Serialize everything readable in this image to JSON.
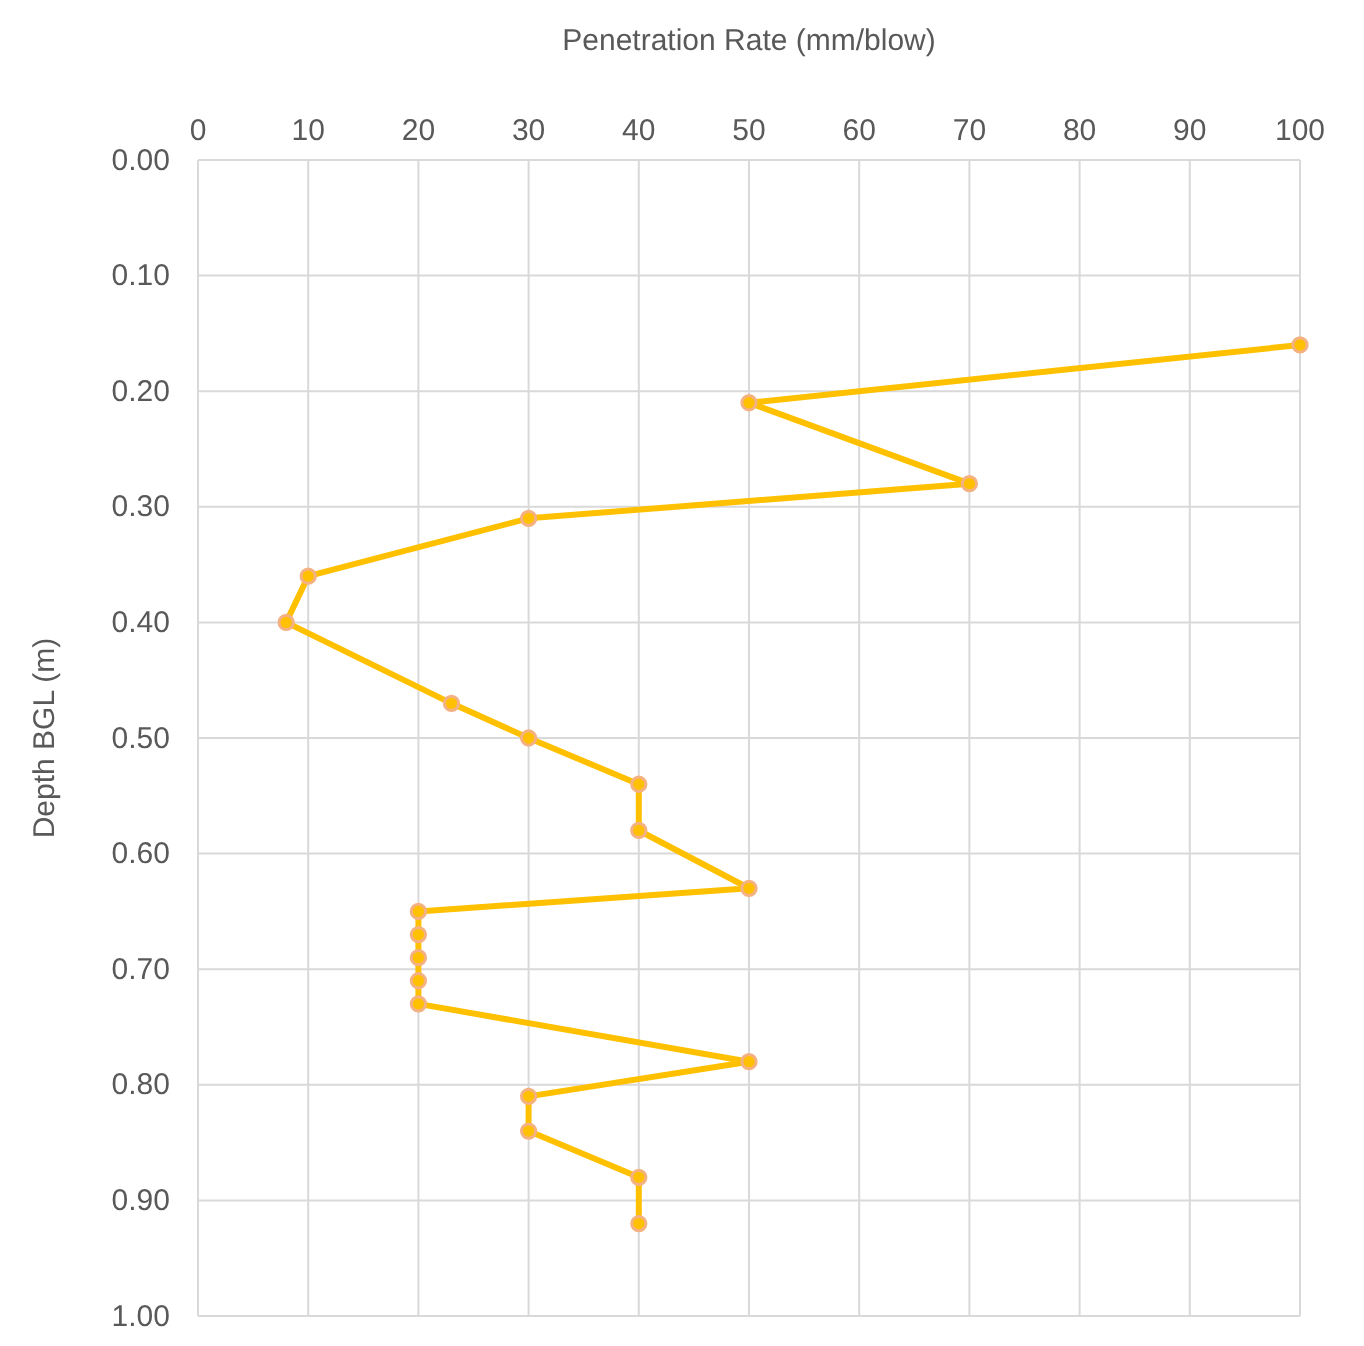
{
  "chart_data": {
    "type": "line",
    "xlabel": "Penetration Rate (mm/blow)",
    "ylabel": "Depth BGL (m)",
    "x": [
      100,
      50,
      70,
      30,
      10,
      8,
      23,
      30,
      40,
      40,
      50,
      20,
      20,
      20,
      20,
      20,
      50,
      30,
      30,
      40,
      40
    ],
    "series": [
      {
        "color": "#ffc000",
        "values": [
          0.16,
          0.21,
          0.28,
          0.31,
          0.36,
          0.4,
          0.47,
          0.5,
          0.54,
          0.58,
          0.63,
          0.65,
          0.67,
          0.69,
          0.71,
          0.73,
          0.78,
          0.81,
          0.84,
          0.88,
          0.92
        ]
      }
    ],
    "xlim": [
      0,
      100
    ],
    "xticks": [
      0,
      10,
      20,
      30,
      40,
      50,
      60,
      70,
      80,
      90,
      100
    ],
    "ylim": [
      1.0,
      0.0
    ],
    "yticks": [
      {
        "value": 0,
        "label": "0.00"
      },
      {
        "value": 0.1,
        "label": "0.10"
      },
      {
        "value": 0.2,
        "label": "0.20"
      },
      {
        "value": 0.3,
        "label": "0.30"
      },
      {
        "value": 0.4,
        "label": "0.40"
      },
      {
        "value": 0.5,
        "label": "0.50"
      },
      {
        "value": 0.6,
        "label": "0.60"
      },
      {
        "value": 0.7,
        "label": "0.70"
      },
      {
        "value": 0.8,
        "label": "0.80"
      },
      {
        "value": 0.9,
        "label": "0.90"
      },
      {
        "value": 1.0,
        "label": "1.00"
      }
    ],
    "grid": true,
    "marker": "circle",
    "line_style": "solid"
  }
}
